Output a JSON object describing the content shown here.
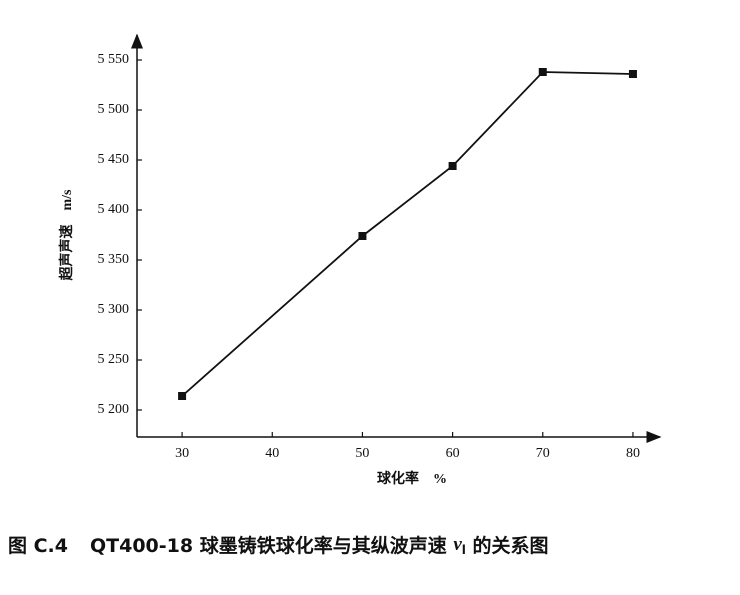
{
  "chart_data": {
    "type": "line",
    "x_label": "球化率　%",
    "y_label": "超声声速　m/s",
    "caption": {
      "number": "图 C.4",
      "before": "QT400-18 球墨铸铁球化率与其纵波声速 ",
      "symbol": "v",
      "subscript": "l",
      "after": " 的关系图"
    },
    "x": [
      30,
      50,
      60,
      70,
      80
    ],
    "series": [
      {
        "color": "#111111",
        "values": [
          5214,
          5374,
          5444,
          5538,
          5536
        ]
      }
    ],
    "xlim": [
      25,
      83
    ],
    "ylim": [
      5173,
      5575
    ],
    "xticks": [
      30,
      40,
      50,
      60,
      70,
      80
    ],
    "yticks": [
      {
        "value": 5200,
        "label": "5 200"
      },
      {
        "value": 5250,
        "label": "5 250"
      },
      {
        "value": 5300,
        "label": "5 300"
      },
      {
        "value": 5350,
        "label": "5 350"
      },
      {
        "value": 5400,
        "label": "5 400"
      },
      {
        "value": 5450,
        "label": "5 450"
      },
      {
        "value": 5500,
        "label": "5 500"
      },
      {
        "value": 5550,
        "label": "5 550"
      }
    ]
  }
}
